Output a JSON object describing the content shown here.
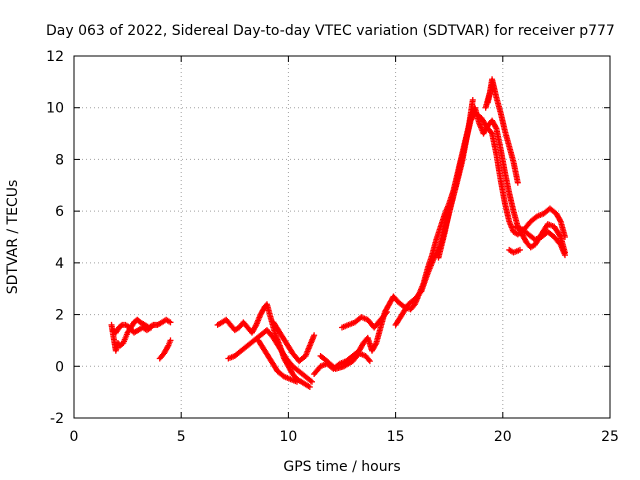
{
  "chart_data": {
    "type": "scatter",
    "title": "Day 063 of 2022, Sidereal Day-to-day VTEC variation (SDTVAR) for receiver p777",
    "xlabel": "GPS time / hours",
    "ylabel": "SDTVAR / TECUs",
    "xlim": [
      0,
      25
    ],
    "ylim": [
      -2,
      12
    ],
    "xticks": [
      0,
      5,
      10,
      15,
      20,
      25
    ],
    "yticks": [
      -2,
      0,
      2,
      4,
      6,
      8,
      10,
      12
    ],
    "grid": true,
    "marker": "+",
    "series": [
      {
        "name": "SDTVAR",
        "color": "#ff0000",
        "tracks": [
          [
            [
              1.75,
              1.6
            ],
            [
              1.85,
              1.1
            ],
            [
              1.95,
              0.6
            ],
            [
              2.05,
              0.9
            ],
            [
              2.15,
              0.8
            ],
            [
              2.3,
              0.9
            ],
            [
              2.4,
              1.1
            ],
            [
              2.5,
              1.3
            ],
            [
              2.65,
              1.5
            ],
            [
              2.8,
              1.7
            ],
            [
              2.95,
              1.8
            ],
            [
              3.1,
              1.7
            ],
            [
              3.3,
              1.6
            ],
            [
              3.5,
              1.5
            ],
            [
              3.7,
              1.6
            ],
            [
              3.9,
              1.6
            ],
            [
              4.1,
              1.7
            ],
            [
              4.3,
              1.8
            ],
            [
              4.5,
              1.7
            ]
          ],
          [
            [
              1.8,
              1.4
            ],
            [
              1.95,
              1.3
            ],
            [
              2.1,
              1.5
            ],
            [
              2.25,
              1.6
            ],
            [
              2.4,
              1.6
            ],
            [
              2.6,
              1.5
            ],
            [
              2.8,
              1.3
            ],
            [
              3.0,
              1.4
            ],
            [
              3.2,
              1.5
            ],
            [
              3.4,
              1.4
            ],
            [
              3.6,
              1.5
            ]
          ],
          [
            [
              4.0,
              0.3
            ],
            [
              4.2,
              0.5
            ],
            [
              4.4,
              0.8
            ],
            [
              4.5,
              1.0
            ]
          ],
          [
            [
              6.7,
              1.6
            ],
            [
              6.9,
              1.7
            ],
            [
              7.1,
              1.8
            ],
            [
              7.3,
              1.6
            ],
            [
              7.5,
              1.4
            ],
            [
              7.7,
              1.5
            ],
            [
              7.9,
              1.7
            ],
            [
              8.1,
              1.5
            ],
            [
              8.3,
              1.3
            ],
            [
              8.5,
              1.6
            ],
            [
              8.7,
              2.0
            ],
            [
              8.9,
              2.3
            ],
            [
              9.0,
              2.4
            ],
            [
              9.2,
              1.8
            ],
            [
              9.4,
              1.2
            ],
            [
              9.6,
              0.8
            ],
            [
              9.8,
              0.3
            ],
            [
              10.0,
              0.0
            ],
            [
              10.2,
              -0.3
            ],
            [
              10.4,
              -0.5
            ],
            [
              10.6,
              -0.6
            ],
            [
              10.8,
              -0.7
            ],
            [
              11.0,
              -0.8
            ]
          ],
          [
            [
              7.2,
              0.3
            ],
            [
              7.5,
              0.4
            ],
            [
              7.8,
              0.6
            ],
            [
              8.1,
              0.8
            ],
            [
              8.4,
              1.0
            ],
            [
              8.7,
              1.2
            ],
            [
              9.0,
              1.4
            ],
            [
              9.3,
              1.1
            ],
            [
              9.6,
              0.7
            ],
            [
              9.9,
              0.3
            ],
            [
              10.2,
              0.0
            ],
            [
              10.5,
              -0.2
            ],
            [
              10.8,
              -0.4
            ],
            [
              11.1,
              -0.6
            ]
          ],
          [
            [
              8.6,
              1.0
            ],
            [
              8.9,
              0.6
            ],
            [
              9.2,
              0.2
            ],
            [
              9.5,
              -0.2
            ],
            [
              9.8,
              -0.4
            ],
            [
              10.1,
              -0.5
            ],
            [
              10.4,
              -0.6
            ]
          ],
          [
            [
              9.3,
              1.7
            ],
            [
              9.6,
              1.3
            ],
            [
              9.9,
              0.9
            ],
            [
              10.2,
              0.5
            ],
            [
              10.5,
              0.2
            ],
            [
              10.8,
              0.4
            ],
            [
              11.0,
              0.8
            ],
            [
              11.2,
              1.2
            ]
          ],
          [
            [
              11.2,
              -0.3
            ],
            [
              11.5,
              0.0
            ],
            [
              11.8,
              0.1
            ],
            [
              12.1,
              -0.1
            ],
            [
              12.4,
              0.1
            ],
            [
              12.7,
              0.2
            ],
            [
              13.0,
              0.4
            ],
            [
              13.3,
              0.6
            ],
            [
              13.5,
              0.9
            ],
            [
              13.7,
              1.1
            ],
            [
              13.9,
              0.6
            ],
            [
              14.1,
              0.9
            ],
            [
              14.3,
              1.5
            ],
            [
              14.5,
              2.1
            ],
            [
              14.7,
              2.4
            ],
            [
              14.9,
              2.7
            ],
            [
              15.1,
              2.5
            ],
            [
              15.4,
              2.3
            ],
            [
              15.7,
              2.2
            ],
            [
              15.9,
              2.4
            ],
            [
              16.1,
              2.8
            ],
            [
              16.3,
              3.2
            ],
            [
              16.5,
              3.8
            ],
            [
              16.7,
              4.3
            ],
            [
              16.9,
              4.9
            ],
            [
              17.1,
              5.4
            ],
            [
              17.3,
              5.9
            ],
            [
              17.5,
              6.3
            ],
            [
              17.7,
              6.8
            ],
            [
              17.9,
              7.5
            ],
            [
              18.1,
              8.2
            ],
            [
              18.3,
              8.9
            ],
            [
              18.5,
              9.6
            ],
            [
              18.7,
              10.0
            ],
            [
              18.9,
              9.4
            ],
            [
              19.1,
              9.0
            ],
            [
              19.3,
              9.3
            ],
            [
              19.5,
              9.5
            ],
            [
              19.7,
              9.2
            ],
            [
              19.9,
              8.4
            ],
            [
              20.1,
              7.5
            ],
            [
              20.3,
              6.7
            ],
            [
              20.5,
              6.0
            ],
            [
              20.7,
              5.4
            ],
            [
              20.9,
              5.1
            ],
            [
              21.1,
              4.8
            ],
            [
              21.3,
              4.6
            ],
            [
              21.5,
              4.7
            ],
            [
              21.8,
              5.1
            ],
            [
              22.1,
              5.5
            ],
            [
              22.4,
              5.4
            ],
            [
              22.7,
              5.0
            ],
            [
              22.9,
              4.4
            ]
          ],
          [
            [
              11.5,
              0.4
            ],
            [
              11.8,
              0.2
            ],
            [
              12.2,
              -0.1
            ],
            [
              12.6,
              0.0
            ],
            [
              13.0,
              0.2
            ],
            [
              13.3,
              0.5
            ],
            [
              13.6,
              0.4
            ],
            [
              13.8,
              0.2
            ]
          ],
          [
            [
              12.5,
              1.5
            ],
            [
              12.8,
              1.6
            ],
            [
              13.1,
              1.7
            ],
            [
              13.4,
              1.9
            ],
            [
              13.7,
              1.8
            ],
            [
              14.0,
              1.5
            ],
            [
              14.3,
              1.8
            ],
            [
              14.6,
              2.1
            ]
          ],
          [
            [
              15.0,
              1.6
            ],
            [
              15.3,
              2.0
            ],
            [
              15.6,
              2.4
            ],
            [
              15.9,
              2.6
            ],
            [
              16.2,
              2.9
            ],
            [
              16.5,
              3.6
            ],
            [
              16.8,
              4.2
            ],
            [
              17.1,
              4.7
            ],
            [
              17.4,
              5.6
            ],
            [
              17.7,
              6.6
            ],
            [
              18.0,
              7.7
            ],
            [
              18.3,
              8.8
            ],
            [
              18.5,
              9.5
            ],
            [
              18.7,
              9.8
            ],
            [
              19.0,
              9.6
            ],
            [
              19.3,
              9.2
            ],
            [
              19.5,
              9.0
            ],
            [
              19.7,
              8.2
            ],
            [
              19.9,
              7.2
            ],
            [
              20.1,
              6.3
            ],
            [
              20.3,
              5.6
            ],
            [
              20.5,
              5.2
            ],
            [
              20.7,
              5.1
            ],
            [
              21.0,
              5.3
            ],
            [
              21.3,
              5.6
            ],
            [
              21.6,
              5.8
            ],
            [
              21.9,
              5.9
            ],
            [
              22.2,
              6.1
            ],
            [
              22.5,
              5.9
            ],
            [
              22.7,
              5.6
            ],
            [
              22.9,
              5.0
            ]
          ],
          [
            [
              17.0,
              4.2
            ],
            [
              17.3,
              5.2
            ],
            [
              17.5,
              6.0
            ],
            [
              17.8,
              6.9
            ],
            [
              18.1,
              7.9
            ],
            [
              18.4,
              9.2
            ],
            [
              18.6,
              10.3
            ]
          ],
          [
            [
              19.2,
              10.0
            ],
            [
              19.4,
              10.6
            ],
            [
              19.5,
              11.1
            ],
            [
              19.7,
              10.4
            ],
            [
              19.9,
              9.8
            ],
            [
              20.1,
              9.1
            ],
            [
              20.3,
              8.5
            ],
            [
              20.5,
              7.9
            ],
            [
              20.7,
              7.1
            ]
          ],
          [
            [
              20.6,
              5.4
            ],
            [
              20.9,
              5.3
            ],
            [
              21.2,
              5.1
            ],
            [
              21.5,
              4.9
            ],
            [
              21.8,
              5.0
            ],
            [
              22.1,
              5.2
            ],
            [
              22.4,
              5.0
            ],
            [
              22.7,
              4.7
            ],
            [
              22.9,
              4.3
            ]
          ],
          [
            [
              20.3,
              4.5
            ],
            [
              20.5,
              4.4
            ],
            [
              20.8,
              4.5
            ]
          ],
          [
            [
              19.3,
              10.2
            ],
            [
              19.5,
              10.9
            ]
          ]
        ]
      }
    ]
  }
}
